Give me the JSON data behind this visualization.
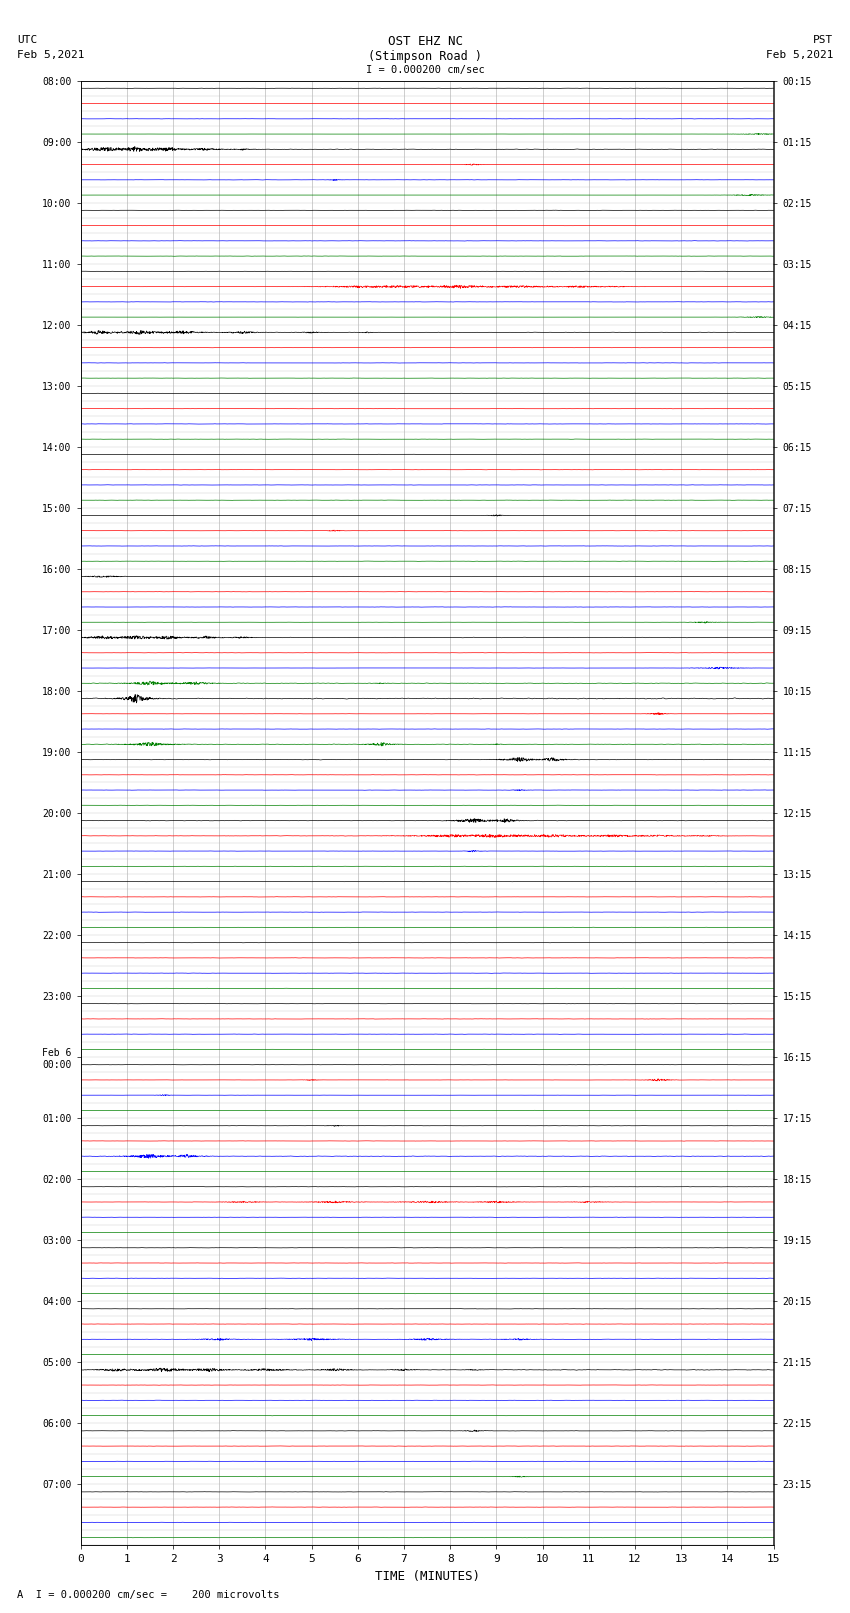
{
  "title_line1": "OST EHZ NC",
  "title_line2": "(Stimpson Road )",
  "title_scale": "I = 0.000200 cm/sec",
  "label_utc": "UTC",
  "label_date_left": "Feb 5,2021",
  "label_pst": "PST",
  "label_date_right": "Feb 5,2021",
  "xlabel": "TIME (MINUTES)",
  "footer": "A  I = 0.000200 cm/sec =    200 microvolts",
  "xlim": [
    0,
    15
  ],
  "n_rows": 96,
  "colors_cycle": [
    "black",
    "red",
    "blue",
    "green"
  ],
  "left_labels": [
    "08:00",
    "09:00",
    "10:00",
    "11:00",
    "12:00",
    "13:00",
    "14:00",
    "15:00",
    "16:00",
    "17:00",
    "18:00",
    "19:00",
    "20:00",
    "21:00",
    "22:00",
    "23:00",
    "Feb 6\n00:00",
    "01:00",
    "02:00",
    "03:00",
    "04:00",
    "05:00",
    "06:00",
    "07:00"
  ],
  "right_labels": [
    "00:15",
    "01:15",
    "02:15",
    "03:15",
    "04:15",
    "05:15",
    "06:15",
    "07:15",
    "08:15",
    "09:15",
    "10:15",
    "11:15",
    "12:15",
    "13:15",
    "14:15",
    "15:15",
    "16:15",
    "17:15",
    "18:15",
    "19:15",
    "20:15",
    "21:15",
    "22:15",
    "23:15"
  ],
  "background_color": "#ffffff",
  "fig_width": 8.5,
  "fig_height": 16.13,
  "dpi": 100
}
